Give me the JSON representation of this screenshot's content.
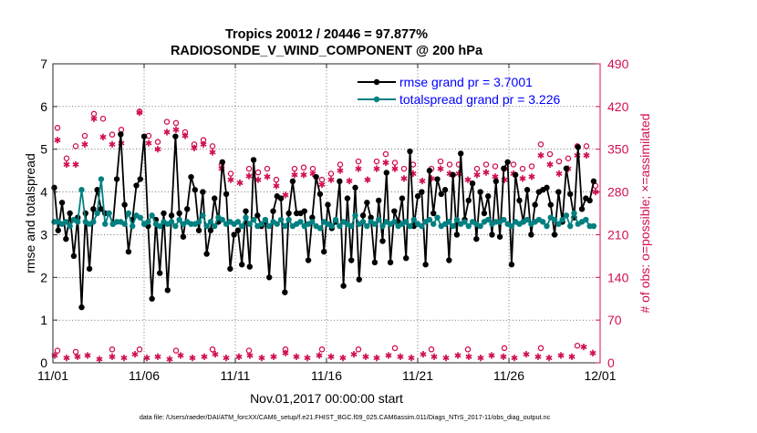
{
  "chart_data": {
    "type": "line",
    "title_line1": "Tropics 20012 / 20446 = 97.877%",
    "title_line2": "RADIOSONDE_V_WIND_COMPONENT @ 200 hPa",
    "xlabel": "Nov.01,2017 00:00:00 start",
    "ylabel_left": "rmse and totalspread",
    "ylabel_right": "# of obs: o=possible; ×=assimilated",
    "footer": "data file: /Users/raeder/DAI/ATM_forcXX/CAM6_setup/f.e21.FHIST_BGC.f09_025.CAM6assim.011/Diags_NTrS_2017-11/obs_diag_output.nc",
    "xlim": [
      0,
      60
    ],
    "ylim_left": [
      0,
      7
    ],
    "ylim_right": [
      0,
      490
    ],
    "x_ticks": [
      0,
      10,
      20,
      30,
      40,
      50,
      60
    ],
    "x_tick_labels": [
      "11/01",
      "11/06",
      "11/11",
      "11/16",
      "11/21",
      "11/26",
      "12/01"
    ],
    "y_ticks_left": [
      0,
      1,
      2,
      3,
      4,
      5,
      6,
      7
    ],
    "y_tick_labels_left": [
      "0",
      "1",
      "2",
      "3",
      "4",
      "5",
      "6",
      "7"
    ],
    "y_ticks_right": [
      0,
      70,
      140,
      210,
      280,
      350,
      420,
      490
    ],
    "y_tick_labels_right": [
      "0",
      "70",
      "140",
      "210",
      "280",
      "350",
      "420",
      "490"
    ],
    "legend": [
      {
        "label": "rmse grand pr = 3.7001",
        "series": "rmse"
      },
      {
        "label": "totalspread grand pr = 3.226",
        "series": "totalspread"
      }
    ],
    "colors": {
      "rmse": "#000000",
      "totalspread": "#008080",
      "obs": "#d0104f",
      "text_legend": "#0000ff",
      "axis_right": "#d0104f"
    },
    "series": [
      {
        "name": "rmse",
        "axis": "left",
        "values": [
          4.1,
          3.1,
          3.75,
          2.9,
          3.5,
          2.5,
          3.4,
          1.3,
          3.5,
          2.2,
          3.6,
          4.05,
          3.6,
          3.5,
          3.5,
          3.25,
          4.3,
          5.35,
          3.7,
          2.6,
          3.35,
          4.15,
          4.3,
          5.3,
          3.2,
          1.5,
          3.35,
          2.1,
          3.5,
          1.7,
          3.45,
          5.3,
          3.5,
          2.95,
          3.6,
          4.35,
          4.05,
          3.1,
          4.0,
          2.55,
          3.1,
          3.85,
          3.3,
          4.7,
          3.95,
          2.2,
          3.0,
          3.1,
          2.3,
          3.55,
          2.25,
          4.75,
          3.45,
          3.2,
          3.3,
          2.0,
          3.55,
          3.9,
          3.85,
          1.65,
          3.5,
          4.25,
          3.5,
          3.5,
          3.55,
          2.4,
          3.4,
          4.35,
          3.95,
          2.6,
          3.7,
          3.15,
          3.3,
          4.25,
          1.8,
          3.85,
          2.4,
          4.1,
          1.95,
          3.45,
          3.75,
          3.4,
          2.35,
          3.8,
          2.85,
          4.45,
          2.35,
          3.55,
          3.3,
          3.85,
          2.45,
          4.95,
          3.2,
          3.9,
          4.0,
          2.3,
          4.5,
          3.5,
          4.3,
          3.95,
          4.05,
          2.4,
          4.4,
          3.0,
          4.9,
          3.35,
          3.8,
          4.2,
          2.9,
          4.0,
          3.5,
          3.9,
          3.0,
          4.25,
          2.95,
          4.55,
          4.7,
          2.3,
          4.4,
          3.8,
          3.3,
          4.05,
          3.0,
          3.7,
          4.0,
          4.05,
          4.1,
          3.7,
          3.0,
          4.0,
          3.3,
          4.55,
          3.95,
          3.4,
          5.05,
          3.6,
          3.85,
          3.8,
          4.25
        ],
        "x_step": 0.4285714
      },
      {
        "name": "totalspread",
        "axis": "left",
        "values": [
          3.3,
          3.3,
          3.25,
          3.3,
          3.2,
          3.35,
          3.3,
          4.05,
          3.3,
          3.25,
          3.3,
          3.5,
          4.3,
          3.25,
          3.5,
          3.25,
          3.3,
          3.3,
          3.25,
          3.5,
          3.2,
          3.45,
          3.4,
          3.25,
          3.3,
          3.45,
          3.25,
          3.2,
          3.3,
          3.25,
          3.3,
          3.2,
          3.35,
          3.25,
          3.3,
          3.25,
          3.25,
          3.3,
          3.45,
          3.2,
          3.3,
          3.2,
          3.4,
          3.35,
          3.25,
          3.3,
          3.25,
          3.3,
          3.2,
          3.4,
          3.25,
          3.35,
          3.2,
          3.25,
          3.35,
          3.2,
          3.3,
          3.25,
          3.35,
          3.2,
          3.35,
          3.2,
          3.25,
          3.3,
          3.2,
          3.25,
          3.3,
          3.2,
          3.15,
          3.3,
          3.25,
          3.2,
          3.35,
          3.2,
          3.3,
          3.25,
          3.2,
          3.45,
          3.25,
          3.3,
          3.2,
          3.3,
          3.25,
          3.35,
          3.2,
          3.3,
          3.25,
          3.3,
          3.2,
          3.25,
          3.3,
          3.2,
          3.35,
          3.25,
          3.2,
          3.3,
          3.35,
          3.25,
          3.4,
          3.2,
          3.25,
          3.3,
          3.2,
          3.35,
          3.25,
          3.3,
          3.2,
          3.3,
          3.25,
          3.2,
          3.3,
          3.35,
          3.25,
          3.3,
          3.3,
          3.35,
          3.25,
          3.2,
          3.3,
          3.25,
          3.3,
          3.35,
          3.25,
          3.3,
          3.35,
          3.3,
          3.2,
          3.4,
          3.35,
          3.25,
          3.35,
          3.45,
          3.2,
          3.5,
          3.25,
          3.3,
          3.35,
          3.2,
          3.2
        ],
        "x_step": 0.4285714
      },
      {
        "name": "obs_possible",
        "axis": "right",
        "points": [
          [
            0.5,
            385
          ],
          [
            1.5,
            335
          ],
          [
            2.5,
            355
          ],
          [
            3.5,
            372
          ],
          [
            4.5,
            408
          ],
          [
            5.5,
            400
          ],
          [
            6.5,
            374
          ],
          [
            7.5,
            382
          ],
          [
            9.5,
            412
          ],
          [
            10.5,
            372
          ],
          [
            11.5,
            362
          ],
          [
            12.5,
            395
          ],
          [
            13.5,
            393
          ],
          [
            14.5,
            378
          ],
          [
            15.5,
            358
          ],
          [
            16.5,
            365
          ],
          [
            17.5,
            355
          ],
          [
            18.5,
            325
          ],
          [
            19.5,
            310
          ],
          [
            21.5,
            318
          ],
          [
            22.5,
            312
          ],
          [
            23.5,
            318
          ],
          [
            24.5,
            300
          ],
          [
            26.5,
            318
          ],
          [
            27.5,
            320
          ],
          [
            28.5,
            318
          ],
          [
            29.5,
            300
          ],
          [
            30.5,
            310
          ],
          [
            31.5,
            325
          ],
          [
            33.5,
            330
          ],
          [
            35.5,
            330
          ],
          [
            36.5,
            342
          ],
          [
            37.5,
            328
          ],
          [
            38.5,
            318
          ],
          [
            39.5,
            325
          ],
          [
            41.5,
            318
          ],
          [
            42.5,
            330
          ],
          [
            43.5,
            325
          ],
          [
            44.5,
            325
          ],
          [
            46.5,
            318
          ],
          [
            47.5,
            325
          ],
          [
            48.5,
            322
          ],
          [
            49.5,
            318
          ],
          [
            50.5,
            325
          ],
          [
            51.5,
            318
          ],
          [
            52.5,
            322
          ],
          [
            53.5,
            358
          ],
          [
            54.5,
            342
          ],
          [
            55.5,
            330
          ],
          [
            56.5,
            335
          ],
          [
            57.5,
            355
          ],
          [
            58.5,
            355
          ],
          [
            59.5,
            290
          ],
          [
            0.5,
            20
          ],
          [
            2.5,
            18
          ],
          [
            6.5,
            22
          ],
          [
            9.5,
            22
          ],
          [
            13.5,
            20
          ],
          [
            17.5,
            22
          ],
          [
            21.5,
            20
          ],
          [
            25.5,
            22
          ],
          [
            29.5,
            22
          ],
          [
            33.5,
            22
          ],
          [
            37.5,
            24
          ],
          [
            41.5,
            22
          ],
          [
            45.5,
            22
          ],
          [
            49.5,
            24
          ],
          [
            53.5,
            24
          ],
          [
            57.5,
            28
          ]
        ]
      },
      {
        "name": "obs_assimilated",
        "axis": "right",
        "points": [
          [
            0.5,
            365
          ],
          [
            1.5,
            325
          ],
          [
            2.5,
            325
          ],
          [
            3.5,
            358
          ],
          [
            4.5,
            400
          ],
          [
            5.5,
            370
          ],
          [
            6.5,
            358
          ],
          [
            7.5,
            360
          ],
          [
            9.5,
            410
          ],
          [
            10.5,
            360
          ],
          [
            11.5,
            350
          ],
          [
            12.5,
            378
          ],
          [
            13.5,
            382
          ],
          [
            14.5,
            372
          ],
          [
            15.5,
            352
          ],
          [
            16.5,
            358
          ],
          [
            17.5,
            345
          ],
          [
            18.5,
            318
          ],
          [
            19.5,
            300
          ],
          [
            20.5,
            295
          ],
          [
            21.5,
            306
          ],
          [
            22.5,
            300
          ],
          [
            23.5,
            305
          ],
          [
            24.5,
            290
          ],
          [
            25.5,
            275
          ],
          [
            26.5,
            308
          ],
          [
            27.5,
            308
          ],
          [
            28.5,
            310
          ],
          [
            29.5,
            292
          ],
          [
            30.5,
            300
          ],
          [
            31.5,
            315
          ],
          [
            32.5,
            298
          ],
          [
            33.5,
            318
          ],
          [
            34.5,
            300
          ],
          [
            35.5,
            318
          ],
          [
            36.5,
            328
          ],
          [
            37.5,
            318
          ],
          [
            38.5,
            302
          ],
          [
            39.5,
            310
          ],
          [
            40.5,
            298
          ],
          [
            41.5,
            302
          ],
          [
            42.5,
            318
          ],
          [
            43.5,
            310
          ],
          [
            44.5,
            310
          ],
          [
            45.5,
            300
          ],
          [
            46.5,
            308
          ],
          [
            47.5,
            312
          ],
          [
            48.5,
            305
          ],
          [
            49.5,
            300
          ],
          [
            50.5,
            310
          ],
          [
            51.5,
            302
          ],
          [
            52.5,
            305
          ],
          [
            53.5,
            340
          ],
          [
            54.5,
            325
          ],
          [
            55.5,
            310
          ],
          [
            56.5,
            318
          ],
          [
            57.5,
            340
          ],
          [
            58.5,
            340
          ],
          [
            59.5,
            280
          ],
          [
            0.2,
            12
          ],
          [
            1.5,
            8
          ],
          [
            2.7,
            10
          ],
          [
            3.8,
            12
          ],
          [
            5.1,
            6
          ],
          [
            6.5,
            10
          ],
          [
            7.8,
            8
          ],
          [
            9.0,
            14
          ],
          [
            10.3,
            8
          ],
          [
            11.5,
            10
          ],
          [
            12.8,
            6
          ],
          [
            14.0,
            12
          ],
          [
            15.3,
            8
          ],
          [
            16.6,
            10
          ],
          [
            17.8,
            14
          ],
          [
            19.0,
            8
          ],
          [
            20.4,
            10
          ],
          [
            21.6,
            12
          ],
          [
            22.9,
            8
          ],
          [
            24.2,
            10
          ],
          [
            25.5,
            16
          ],
          [
            26.7,
            10
          ],
          [
            27.9,
            8
          ],
          [
            29.2,
            12
          ],
          [
            30.5,
            10
          ],
          [
            31.8,
            8
          ],
          [
            33.0,
            14
          ],
          [
            34.3,
            10
          ],
          [
            35.5,
            8
          ],
          [
            36.8,
            12
          ],
          [
            38.1,
            10
          ],
          [
            39.3,
            8
          ],
          [
            40.6,
            14
          ],
          [
            41.8,
            10
          ],
          [
            43.1,
            8
          ],
          [
            44.4,
            12
          ],
          [
            45.6,
            10
          ],
          [
            46.9,
            8
          ],
          [
            48.1,
            12
          ],
          [
            49.4,
            10
          ],
          [
            50.6,
            8
          ],
          [
            51.9,
            14
          ],
          [
            53.2,
            10
          ],
          [
            54.4,
            8
          ],
          [
            55.7,
            12
          ],
          [
            56.9,
            10
          ],
          [
            58.2,
            26
          ],
          [
            59.2,
            16
          ]
        ]
      }
    ]
  }
}
